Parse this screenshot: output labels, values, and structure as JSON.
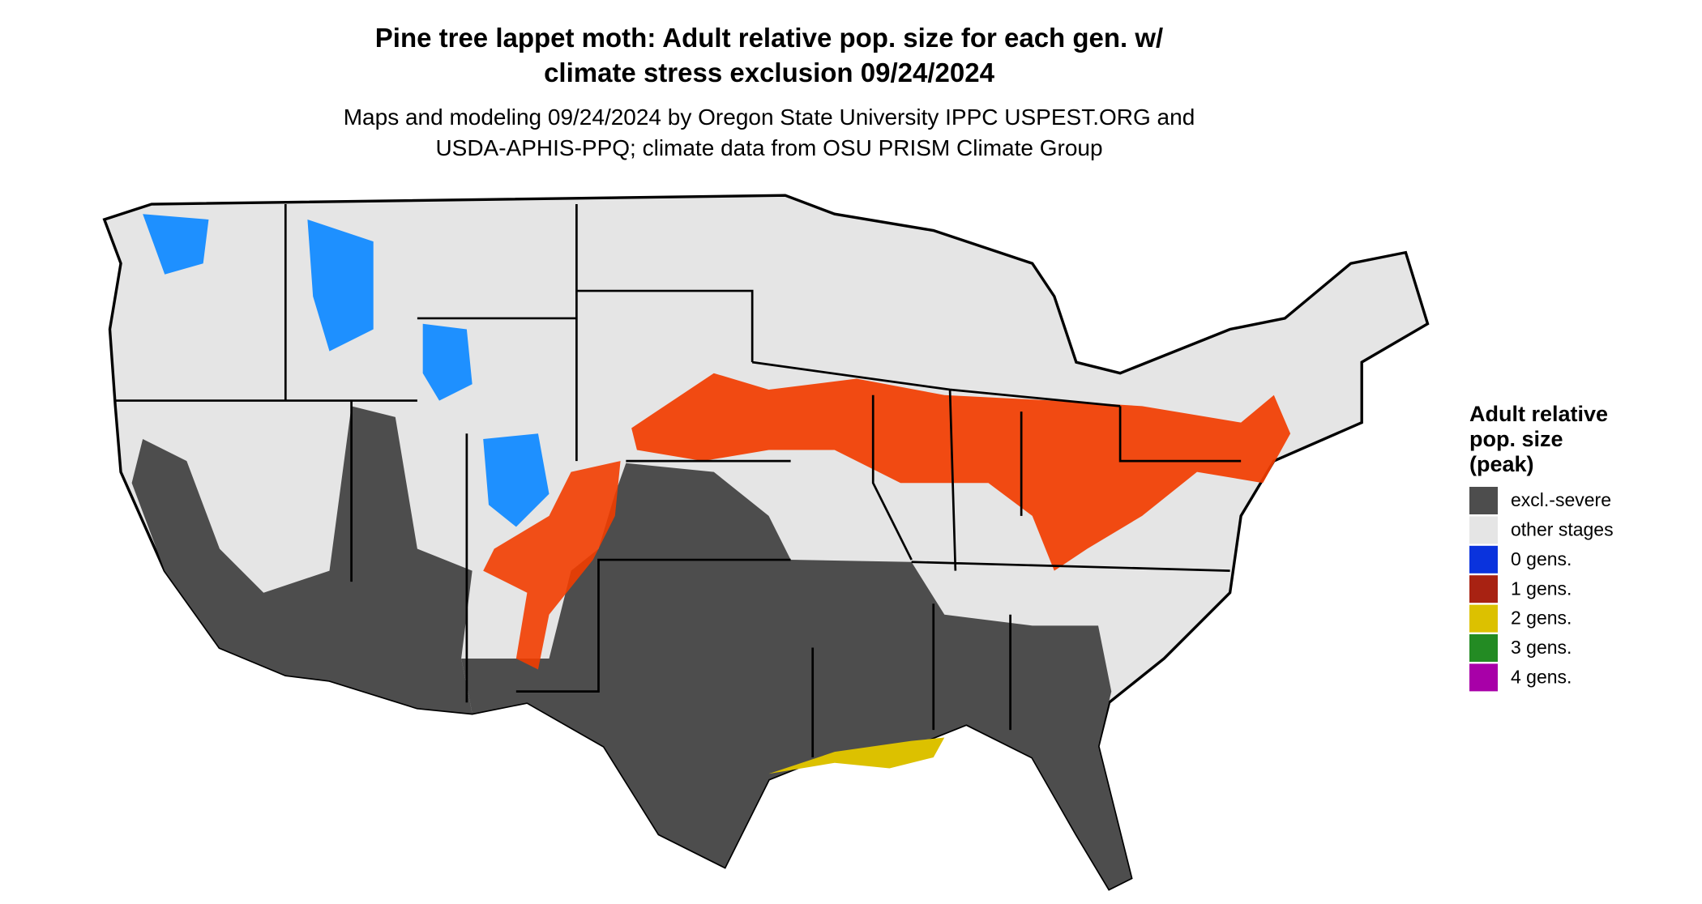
{
  "title": [
    "Pine tree lappet moth: Adult relative pop. size for each gen. w/",
    "climate stress exclusion 09/24/2024"
  ],
  "subtitle": [
    "Maps and modeling 09/24/2024 by Oregon State University IPPC USPEST.ORG and",
    "USDA-APHIS-PPQ; climate data from OSU PRISM Climate Group"
  ],
  "legend": {
    "title": [
      "Adult relative",
      "pop. size",
      "(peak)"
    ],
    "items": [
      {
        "label": "excl.-severe",
        "color": "#4d4d4d"
      },
      {
        "label": "other stages",
        "color": "#e5e5e5"
      },
      {
        "label": "0 gens.",
        "color": "#0a33dd"
      },
      {
        "label": "1 gens.",
        "color": "#a82212"
      },
      {
        "label": "2 gens.",
        "color": "#dcc100"
      },
      {
        "label": "3 gens.",
        "color": "#238b23"
      },
      {
        "label": "4 gens.",
        "color": "#a800a8"
      }
    ]
  }
}
